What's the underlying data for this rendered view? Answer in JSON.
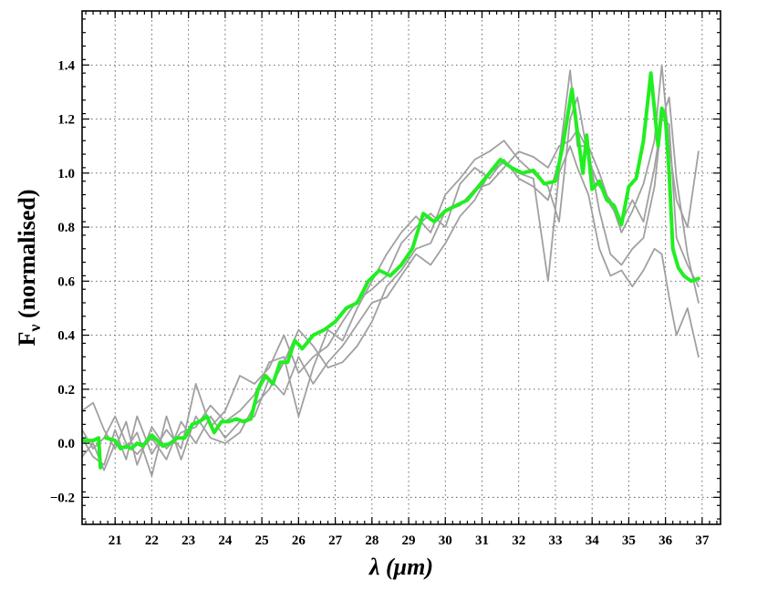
{
  "chart_data": {
    "type": "line",
    "xlabel": "λ (μm)",
    "ylabel": "F",
    "ylabel_sub": "ν",
    "ylabel_rest": " (normalised)",
    "xlim": [
      20.1,
      37.5
    ],
    "ylim": [
      -0.3,
      1.6
    ],
    "xticks": [
      21,
      22,
      23,
      24,
      25,
      26,
      27,
      28,
      29,
      30,
      31,
      32,
      33,
      34,
      35,
      36,
      37
    ],
    "yticks": [
      -0.2,
      0.0,
      0.2,
      0.4,
      0.6,
      0.8,
      1.0,
      1.2,
      1.4
    ],
    "ytick_labels": [
      "−0.2",
      "0.0",
      "0.2",
      "0.4",
      "0.6",
      "0.8",
      "1.0",
      "1.2",
      "1.4"
    ],
    "grid": true,
    "colors": {
      "individual": "#a0a0a0",
      "mean": "#22ee22"
    },
    "series": [
      {
        "role": "individual",
        "x": [
          20.1,
          20.4,
          20.7,
          21.0,
          21.3,
          21.6,
          22.0,
          22.4,
          22.8,
          23.2,
          23.6,
          24.0,
          24.4,
          24.8,
          25.2,
          25.6,
          26.0,
          26.4,
          26.8,
          27.2,
          27.6,
          28.0,
          28.4,
          28.8,
          29.2,
          29.6,
          30.0,
          30.4,
          30.8,
          31.2,
          31.6,
          32.0,
          32.4,
          32.8,
          33.1,
          33.4,
          33.6,
          33.9,
          34.2,
          34.5,
          34.8,
          35.1,
          35.4,
          35.7,
          35.9,
          36.1,
          36.3,
          36.6,
          36.9
        ],
        "y": [
          0.02,
          -0.05,
          -0.08,
          0.05,
          -0.06,
          0.1,
          -0.04,
          0.05,
          -0.02,
          0.22,
          0.06,
          0.12,
          0.25,
          0.22,
          0.28,
          0.4,
          0.26,
          0.32,
          0.36,
          0.45,
          0.53,
          0.57,
          0.62,
          0.74,
          0.8,
          0.85,
          0.8,
          0.96,
          1.02,
          0.98,
          1.05,
          0.98,
          0.95,
          0.9,
          1.05,
          1.38,
          1.1,
          1.1,
          1.0,
          0.88,
          0.82,
          0.9,
          0.82,
          1.02,
          1.2,
          1.28,
          0.98,
          0.7,
          0.52
        ]
      },
      {
        "role": "individual",
        "x": [
          20.1,
          20.4,
          20.7,
          21.0,
          21.3,
          21.6,
          22.0,
          22.4,
          22.8,
          23.2,
          23.6,
          24.0,
          24.4,
          24.8,
          25.2,
          25.6,
          26.0,
          26.4,
          26.8,
          27.2,
          27.6,
          28.0,
          28.4,
          28.8,
          29.2,
          29.6,
          30.0,
          30.4,
          30.8,
          31.2,
          31.6,
          32.0,
          32.4,
          32.8,
          33.1,
          33.4,
          33.6,
          33.9,
          34.2,
          34.5,
          34.8,
          35.1,
          35.4,
          35.7,
          35.9,
          36.1,
          36.3,
          36.6,
          36.9
        ],
        "y": [
          0.12,
          0.15,
          0.05,
          -0.02,
          0.08,
          -0.08,
          0.06,
          -0.02,
          0.04,
          0.06,
          0.14,
          0.08,
          0.12,
          0.18,
          0.3,
          0.32,
          0.1,
          0.28,
          0.42,
          0.38,
          0.5,
          0.6,
          0.7,
          0.78,
          0.84,
          0.78,
          0.92,
          0.98,
          1.05,
          1.08,
          1.12,
          1.05,
          1.0,
          0.95,
          0.82,
          1.2,
          1.28,
          1.05,
          0.95,
          0.9,
          0.78,
          0.86,
          0.96,
          1.12,
          1.4,
          1.1,
          0.9,
          0.8,
          1.08
        ]
      },
      {
        "role": "individual",
        "x": [
          20.1,
          20.4,
          20.7,
          21.0,
          21.3,
          21.6,
          22.0,
          22.4,
          22.8,
          23.2,
          23.6,
          24.0,
          24.4,
          24.8,
          25.2,
          25.6,
          26.0,
          26.4,
          26.8,
          27.2,
          27.6,
          28.0,
          28.4,
          28.8,
          29.2,
          29.6,
          30.0,
          30.4,
          30.8,
          31.2,
          31.6,
          32.0,
          32.4,
          32.8,
          33.1,
          33.4,
          33.6,
          33.9,
          34.2,
          34.5,
          34.8,
          35.1,
          35.4,
          35.7,
          35.9,
          36.1,
          36.3,
          36.6,
          36.9
        ],
        "y": [
          -0.05,
          0.0,
          -0.1,
          0.0,
          -0.02,
          0.04,
          -0.12,
          0.1,
          -0.06,
          0.1,
          0.02,
          0.0,
          0.04,
          0.14,
          0.2,
          0.3,
          0.42,
          0.36,
          0.28,
          0.3,
          0.36,
          0.45,
          0.58,
          0.64,
          0.72,
          0.74,
          0.86,
          0.88,
          0.94,
          0.96,
          1.02,
          1.08,
          1.06,
          1.02,
          1.1,
          1.12,
          1.16,
          1.08,
          0.86,
          0.7,
          0.66,
          0.72,
          0.76,
          0.95,
          1.2,
          1.18,
          0.76,
          0.66,
          0.58
        ]
      },
      {
        "role": "individual",
        "x": [
          20.1,
          20.4,
          20.7,
          21.0,
          21.3,
          21.6,
          22.0,
          22.4,
          22.8,
          23.2,
          23.6,
          24.0,
          24.4,
          24.8,
          25.2,
          25.6,
          26.0,
          26.4,
          26.8,
          27.2,
          27.6,
          28.0,
          28.4,
          28.8,
          29.2,
          29.6,
          30.0,
          30.4,
          30.8,
          31.2,
          31.6,
          32.0,
          32.4,
          32.8,
          33.1,
          33.4,
          33.6,
          33.9,
          34.2,
          34.5,
          34.8,
          35.1,
          35.4,
          35.7,
          35.9,
          36.1,
          36.3,
          36.6,
          36.9
        ],
        "y": [
          0.05,
          -0.02,
          0.02,
          0.1,
          0.0,
          -0.04,
          0.02,
          -0.06,
          0.08,
          0.0,
          0.1,
          0.02,
          0.08,
          0.1,
          0.24,
          0.18,
          0.32,
          0.22,
          0.3,
          0.36,
          0.44,
          0.52,
          0.54,
          0.62,
          0.7,
          0.66,
          0.74,
          0.84,
          0.9,
          1.0,
          1.04,
          1.0,
          0.98,
          0.6,
          1.0,
          1.1,
          1.02,
          0.92,
          0.72,
          0.62,
          0.64,
          0.58,
          0.64,
          0.72,
          0.7,
          0.54,
          0.4,
          0.5,
          0.32
        ]
      },
      {
        "role": "mean",
        "x": [
          20.1,
          20.4,
          20.55,
          20.6
        ],
        "y": [
          0.01,
          0.01,
          0.02,
          -0.09
        ]
      },
      {
        "role": "mean",
        "x": [
          20.75,
          21.0,
          21.15,
          21.3,
          21.45,
          21.6,
          21.75,
          22.0,
          22.15,
          22.3,
          22.5,
          22.7,
          22.9,
          23.1,
          23.3,
          23.5,
          23.7,
          23.9,
          24.1,
          24.3,
          24.5,
          24.7,
          24.9,
          25.1,
          25.3,
          25.5,
          25.7,
          25.9,
          26.1,
          26.4,
          26.7,
          27.0,
          27.3,
          27.6,
          27.9,
          28.2,
          28.5,
          28.8,
          29.1,
          29.4,
          29.7,
          30.0,
          30.3,
          30.6,
          30.9,
          31.2,
          31.5,
          31.8,
          32.1,
          32.4,
          32.7,
          33.0,
          33.2,
          33.45,
          33.6,
          33.75,
          33.85,
          34.0,
          34.2,
          34.4,
          34.6,
          34.8,
          35.0,
          35.2,
          35.4,
          35.6,
          35.8,
          35.9,
          36.0,
          36.1,
          36.2,
          36.35,
          36.5,
          36.7,
          36.9
        ],
        "y": [
          0.02,
          0.01,
          -0.02,
          -0.01,
          -0.02,
          0.0,
          -0.01,
          0.03,
          0.01,
          -0.01,
          0.0,
          0.02,
          0.02,
          0.07,
          0.08,
          0.1,
          0.04,
          0.08,
          0.08,
          0.09,
          0.08,
          0.09,
          0.2,
          0.25,
          0.22,
          0.3,
          0.3,
          0.38,
          0.35,
          0.4,
          0.42,
          0.45,
          0.5,
          0.52,
          0.6,
          0.64,
          0.62,
          0.66,
          0.72,
          0.85,
          0.82,
          0.86,
          0.88,
          0.9,
          0.95,
          1.0,
          1.05,
          1.02,
          1.0,
          1.01,
          0.96,
          0.97,
          1.1,
          1.31,
          1.15,
          1.0,
          1.14,
          0.94,
          0.97,
          0.9,
          0.88,
          0.81,
          0.95,
          0.98,
          1.12,
          1.37,
          1.1,
          1.24,
          1.2,
          1.0,
          0.72,
          0.65,
          0.62,
          0.6,
          0.61
        ]
      }
    ]
  }
}
